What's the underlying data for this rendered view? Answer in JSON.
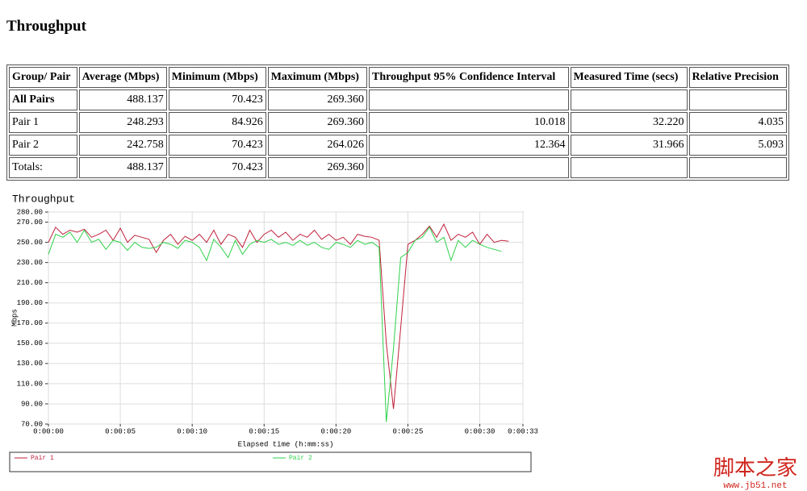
{
  "header": {
    "title": "Throughput"
  },
  "table": {
    "columns": [
      "Group/ Pair",
      "Average (Mbps)",
      "Minimum (Mbps)",
      "Maximum (Mbps)",
      "Throughput 95% Confidence Interval",
      "Measured Time (secs)",
      "Relative Precision"
    ],
    "rows": [
      [
        "All Pairs",
        "488.137",
        "70.423",
        "269.360",
        null,
        null,
        null
      ],
      [
        "Pair 1",
        "248.293",
        "84.926",
        "269.360",
        "10.018",
        "32.220",
        "4.035"
      ],
      [
        "Pair 2",
        "242.758",
        "70.423",
        "264.026",
        "12.364",
        "31.966",
        "5.093"
      ],
      [
        "Totals:",
        "488.137",
        "70.423",
        "269.360",
        null,
        null,
        null
      ]
    ]
  },
  "chart_data": {
    "type": "line",
    "title": "Throughput",
    "x_label": "Elapsed time (h:mm:ss)",
    "y_label": "Mbps",
    "grid": true,
    "x": [
      0,
      0.5,
      1,
      1.5,
      2,
      2.5,
      3,
      3.5,
      4,
      4.5,
      5,
      5.5,
      6,
      6.5,
      7,
      7.5,
      8,
      8.5,
      9,
      9.5,
      10,
      10.5,
      11,
      11.5,
      12,
      12.5,
      13,
      13.5,
      14,
      14.5,
      15,
      15.5,
      16,
      16.5,
      17,
      17.5,
      18,
      18.5,
      19,
      19.5,
      20,
      20.5,
      21,
      21.5,
      22,
      22.5,
      23,
      23.5,
      24,
      24.5,
      25,
      25.5,
      26,
      26.5,
      27,
      27.5,
      28,
      28.5,
      29,
      29.5,
      30,
      30.5,
      31,
      31.5,
      32
    ],
    "series": [
      {
        "name": "Pair 1",
        "color": "#c0203a",
        "values": [
          250,
          265,
          258,
          262,
          260,
          263,
          255,
          258,
          262,
          252,
          264,
          250,
          257,
          255,
          253,
          240,
          252,
          258,
          248,
          256,
          252,
          258,
          250,
          262,
          248,
          258,
          255,
          245,
          262,
          250,
          258,
          262,
          255,
          260,
          252,
          258,
          255,
          262,
          253,
          258,
          252,
          255,
          248,
          258,
          256,
          255,
          252,
          150,
          85,
          165,
          248,
          252,
          258,
          266,
          255,
          268,
          252,
          258,
          255,
          260,
          248,
          258,
          250,
          252,
          251
        ]
      },
      {
        "name": "Pair 2",
        "color": "#2ed14a",
        "values": [
          238,
          258,
          255,
          260,
          250,
          262,
          250,
          253,
          243,
          252,
          250,
          242,
          250,
          245,
          244,
          245,
          250,
          248,
          244,
          252,
          250,
          245,
          232,
          253,
          245,
          235,
          252,
          238,
          248,
          252,
          250,
          253,
          248,
          250,
          247,
          252,
          247,
          250,
          245,
          243,
          250,
          248,
          245,
          252,
          248,
          250,
          245,
          72,
          145,
          235,
          240,
          252,
          255,
          265,
          250,
          255,
          232,
          252,
          245,
          252,
          248,
          245,
          243,
          241,
          null
        ]
      }
    ],
    "xlim": [
      0,
      33
    ],
    "xticks": [
      {
        "value": 0,
        "label": "0:00:00"
      },
      {
        "value": 5,
        "label": "0:00:05"
      },
      {
        "value": 10,
        "label": "0:00:10"
      },
      {
        "value": 15,
        "label": "0:00:15"
      },
      {
        "value": 20,
        "label": "0:00:20"
      },
      {
        "value": 25,
        "label": "0:00:25"
      },
      {
        "value": 30,
        "label": "0:00:30"
      },
      {
        "value": 33,
        "label": "0:00:33"
      }
    ],
    "ylim": [
      70,
      280
    ],
    "yticks": [
      {
        "value": 70,
        "label": "70.00"
      },
      {
        "value": 90,
        "label": "90.00"
      },
      {
        "value": 110,
        "label": "110.00"
      },
      {
        "value": 130,
        "label": "130.00"
      },
      {
        "value": 150,
        "label": "150.00"
      },
      {
        "value": 170,
        "label": "170.00"
      },
      {
        "value": 190,
        "label": "190.00"
      },
      {
        "value": 210,
        "label": "210.00"
      },
      {
        "value": 230,
        "label": "230.00"
      },
      {
        "value": 250,
        "label": "250.00"
      },
      {
        "value": 270,
        "label": "270.00"
      },
      {
        "value": 280,
        "label": "280.00"
      }
    ]
  },
  "watermark": {
    "brand": "脚本之家",
    "url": "www.jb51.net"
  }
}
